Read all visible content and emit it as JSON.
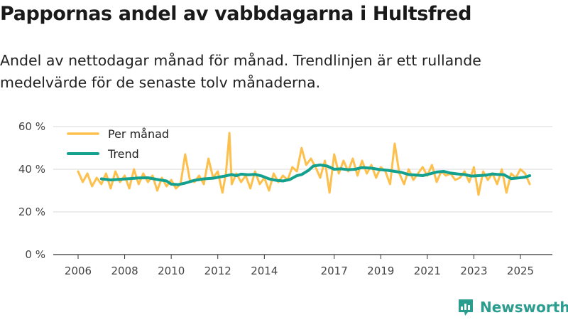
{
  "title": "Pappornas andel av vabbdagarna i Hultsfred",
  "subtitle": "Andel av nettodagar månad för månad. Trendlinjen är ett rullande medelvärde för de senaste tolv månaderna.",
  "brand": "Newsworthy",
  "colors": {
    "monthly": "#fdc04c",
    "trend": "#14a08e",
    "grid": "#d9d9d9",
    "axis": "#333333",
    "brand": "#2a9d8f"
  },
  "chart_data": {
    "type": "line",
    "title": "Pappornas andel av vabbdagarna i Hultsfred",
    "xlabel": "",
    "ylabel": "",
    "xlim": [
      2006.0,
      2025.9
    ],
    "ylim": [
      0,
      60
    ],
    "y_ticks": [
      0,
      20,
      40,
      60
    ],
    "y_tick_labels": [
      "0 %",
      "20 %",
      "40 %",
      "60 %"
    ],
    "x_ticks": [
      2006,
      2008,
      2010,
      2012,
      2014,
      2017,
      2019,
      2021,
      2023,
      2025
    ],
    "x_tick_labels": [
      "2006",
      "2008",
      "2010",
      "2012",
      "2014",
      "2017",
      "2019",
      "2021",
      "2023",
      "2025"
    ],
    "grid": true,
    "legend_position": "top-left",
    "series": [
      {
        "name": "Per månad",
        "x": [
          2006.0,
          2006.2,
          2006.4,
          2006.6,
          2006.8,
          2007.0,
          2007.2,
          2007.4,
          2007.6,
          2007.8,
          2008.0,
          2008.2,
          2008.4,
          2008.6,
          2008.8,
          2009.0,
          2009.2,
          2009.4,
          2009.6,
          2009.8,
          2010.0,
          2010.2,
          2010.4,
          2010.6,
          2010.8,
          2011.0,
          2011.2,
          2011.4,
          2011.6,
          2011.8,
          2012.0,
          2012.2,
          2012.35,
          2012.5,
          2012.6,
          2012.8,
          2013.0,
          2013.2,
          2013.4,
          2013.6,
          2013.8,
          2014.0,
          2014.2,
          2014.4,
          2014.6,
          2014.8,
          2015.0,
          2015.2,
          2015.4,
          2015.6,
          2015.8,
          2016.0,
          2016.2,
          2016.4,
          2016.6,
          2016.8,
          2017.0,
          2017.2,
          2017.4,
          2017.6,
          2017.8,
          2018.0,
          2018.2,
          2018.4,
          2018.6,
          2018.8,
          2019.0,
          2019.2,
          2019.4,
          2019.6,
          2019.8,
          2020.0,
          2020.2,
          2020.4,
          2020.6,
          2020.8,
          2021.0,
          2021.2,
          2021.4,
          2021.6,
          2021.8,
          2022.0,
          2022.2,
          2022.4,
          2022.6,
          2022.8,
          2023.0,
          2023.2,
          2023.4,
          2023.6,
          2023.8,
          2024.0,
          2024.2,
          2024.4,
          2024.6,
          2024.8,
          2025.0,
          2025.2,
          2025.4
        ],
        "values": [
          39,
          34,
          38,
          32,
          36,
          33,
          38,
          31,
          39,
          34,
          37,
          31,
          40,
          33,
          38,
          34,
          37,
          30,
          36,
          32,
          35,
          31,
          33,
          47,
          35,
          34,
          37,
          33,
          45,
          36,
          39,
          29,
          38,
          57,
          33,
          38,
          34,
          37,
          31,
          39,
          33,
          36,
          30,
          38,
          34,
          37,
          35,
          41,
          39,
          50,
          42,
          45,
          41,
          36,
          44,
          29,
          47,
          38,
          44,
          39,
          45,
          37,
          44,
          38,
          42,
          36,
          41,
          39,
          33,
          52,
          38,
          33,
          40,
          35,
          38,
          41,
          37,
          42,
          34,
          39,
          37,
          38,
          35,
          36,
          39,
          34,
          41,
          28,
          39,
          35,
          38,
          33,
          40,
          29,
          38,
          36,
          40,
          38,
          33
        ]
      },
      {
        "name": "Trend",
        "x": [
          2007.0,
          2007.4,
          2007.8,
          2008.2,
          2008.6,
          2009.0,
          2009.4,
          2009.8,
          2010.0,
          2010.3,
          2010.6,
          2011.0,
          2011.4,
          2011.8,
          2012.0,
          2012.3,
          2012.6,
          2012.8,
          2013.0,
          2013.3,
          2013.6,
          2013.9,
          2014.2,
          2014.5,
          2014.8,
          2015.1,
          2015.4,
          2015.6,
          2015.9,
          2016.1,
          2016.4,
          2016.7,
          2017.0,
          2017.3,
          2017.6,
          2017.9,
          2018.2,
          2018.6,
          2019.0,
          2019.3,
          2019.6,
          2019.9,
          2020.2,
          2020.5,
          2020.8,
          2021.1,
          2021.4,
          2021.7,
          2022.0,
          2022.3,
          2022.6,
          2022.9,
          2023.2,
          2023.5,
          2023.8,
          2024.0,
          2024.3,
          2024.6,
          2024.9,
          2025.2,
          2025.4
        ],
        "values": [
          35.5,
          35.0,
          35.3,
          35.6,
          35.9,
          36.0,
          35.2,
          34.5,
          33.0,
          32.8,
          33.5,
          34.8,
          35.5,
          35.8,
          36.2,
          36.8,
          37.5,
          37.0,
          37.7,
          37.4,
          37.6,
          36.8,
          35.5,
          34.8,
          34.5,
          35.2,
          37.0,
          37.5,
          39.5,
          41.5,
          42.0,
          41.5,
          40.0,
          40.2,
          39.8,
          40.0,
          40.8,
          40.5,
          39.8,
          39.5,
          39.0,
          38.5,
          37.5,
          37.3,
          37.0,
          37.8,
          38.7,
          39.0,
          38.2,
          37.8,
          37.5,
          36.8,
          37.0,
          37.2,
          37.8,
          37.6,
          37.4,
          35.6,
          35.9,
          36.3,
          37.0
        ]
      }
    ]
  }
}
